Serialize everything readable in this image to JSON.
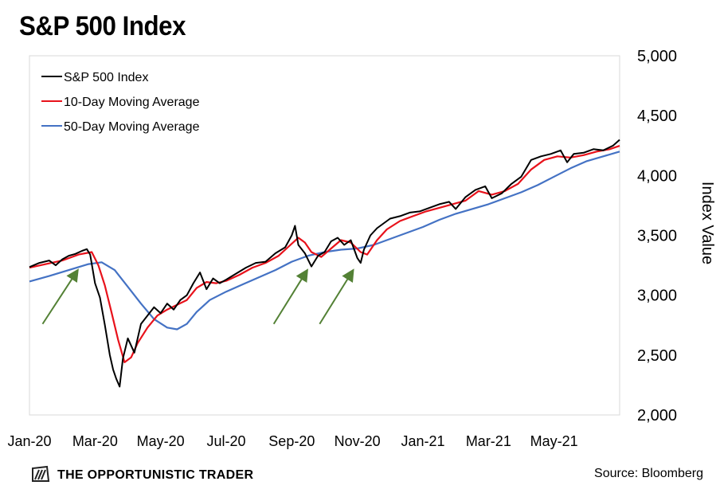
{
  "title": "S&P 500 Index",
  "source": "Source: Bloomberg",
  "brand": "THE OPPORTUNISTIC TRADER",
  "icon": "trader-logo-icon",
  "colors": {
    "index": "#000000",
    "ma10": "#e8121b",
    "ma50": "#4472c4",
    "arrow": "#538135",
    "frame": "#d9d9d9"
  },
  "chart_data": {
    "type": "line",
    "title": "S&P 500 Index",
    "xlabel": "",
    "ylabel": "Index Value",
    "x_tick_labels": [
      "Jan-20",
      "Mar-20",
      "May-20",
      "Jul-20",
      "Sep-20",
      "Nov-20",
      "Jan-21",
      "Mar-21",
      "May-21"
    ],
    "y_tick_labels": [
      "2,000",
      "2,500",
      "3,000",
      "3,500",
      "4,000",
      "4,500",
      "5,000"
    ],
    "y_ticks": [
      2000,
      2500,
      3000,
      3500,
      4000,
      4500,
      5000
    ],
    "ylim": [
      2000,
      5000
    ],
    "xlim": [
      0,
      18
    ],
    "x_unit": "months since Jan-20",
    "legend_position": "top-left",
    "grid": false,
    "series": [
      {
        "name": "S&P 500 Index",
        "color": "#000000",
        "points": [
          [
            0,
            3235
          ],
          [
            0.3,
            3270
          ],
          [
            0.6,
            3290
          ],
          [
            0.8,
            3250
          ],
          [
            1.0,
            3300
          ],
          [
            1.2,
            3330
          ],
          [
            1.4,
            3345
          ],
          [
            1.6,
            3370
          ],
          [
            1.75,
            3385
          ],
          [
            1.85,
            3340
          ],
          [
            2.0,
            3100
          ],
          [
            2.15,
            2980
          ],
          [
            2.3,
            2750
          ],
          [
            2.45,
            2500
          ],
          [
            2.55,
            2380
          ],
          [
            2.65,
            2300
          ],
          [
            2.75,
            2237
          ],
          [
            2.85,
            2470
          ],
          [
            3.0,
            2640
          ],
          [
            3.2,
            2520
          ],
          [
            3.4,
            2760
          ],
          [
            3.6,
            2830
          ],
          [
            3.8,
            2900
          ],
          [
            4.0,
            2850
          ],
          [
            4.2,
            2930
          ],
          [
            4.4,
            2880
          ],
          [
            4.6,
            2960
          ],
          [
            4.8,
            3000
          ],
          [
            5.0,
            3100
          ],
          [
            5.2,
            3190
          ],
          [
            5.4,
            3050
          ],
          [
            5.6,
            3140
          ],
          [
            5.8,
            3100
          ],
          [
            6.0,
            3130
          ],
          [
            6.3,
            3180
          ],
          [
            6.6,
            3230
          ],
          [
            6.9,
            3270
          ],
          [
            7.2,
            3280
          ],
          [
            7.5,
            3350
          ],
          [
            7.8,
            3400
          ],
          [
            8.0,
            3500
          ],
          [
            8.1,
            3580
          ],
          [
            8.2,
            3420
          ],
          [
            8.4,
            3350
          ],
          [
            8.6,
            3240
          ],
          [
            8.8,
            3330
          ],
          [
            9.0,
            3360
          ],
          [
            9.2,
            3450
          ],
          [
            9.4,
            3480
          ],
          [
            9.6,
            3420
          ],
          [
            9.8,
            3460
          ],
          [
            10.0,
            3310
          ],
          [
            10.1,
            3270
          ],
          [
            10.2,
            3380
          ],
          [
            10.4,
            3500
          ],
          [
            10.6,
            3560
          ],
          [
            10.8,
            3600
          ],
          [
            11.0,
            3640
          ],
          [
            11.3,
            3660
          ],
          [
            11.6,
            3690
          ],
          [
            11.9,
            3700
          ],
          [
            12.2,
            3730
          ],
          [
            12.5,
            3760
          ],
          [
            12.8,
            3780
          ],
          [
            13.0,
            3720
          ],
          [
            13.3,
            3820
          ],
          [
            13.6,
            3880
          ],
          [
            13.9,
            3910
          ],
          [
            14.1,
            3810
          ],
          [
            14.4,
            3850
          ],
          [
            14.7,
            3930
          ],
          [
            15.0,
            3990
          ],
          [
            15.3,
            4130
          ],
          [
            15.6,
            4160
          ],
          [
            15.9,
            4180
          ],
          [
            16.2,
            4210
          ],
          [
            16.4,
            4110
          ],
          [
            16.6,
            4180
          ],
          [
            16.9,
            4190
          ],
          [
            17.2,
            4220
          ],
          [
            17.5,
            4210
          ],
          [
            17.8,
            4250
          ],
          [
            18.0,
            4298
          ]
        ]
      },
      {
        "name": "10-Day Moving Average",
        "color": "#e8121b",
        "points": [
          [
            0,
            3230
          ],
          [
            0.5,
            3260
          ],
          [
            1.0,
            3290
          ],
          [
            1.5,
            3340
          ],
          [
            1.9,
            3360
          ],
          [
            2.1,
            3250
          ],
          [
            2.3,
            3080
          ],
          [
            2.5,
            2860
          ],
          [
            2.7,
            2630
          ],
          [
            2.9,
            2440
          ],
          [
            3.1,
            2480
          ],
          [
            3.3,
            2600
          ],
          [
            3.6,
            2730
          ],
          [
            3.9,
            2830
          ],
          [
            4.2,
            2880
          ],
          [
            4.5,
            2920
          ],
          [
            4.8,
            2960
          ],
          [
            5.1,
            3060
          ],
          [
            5.4,
            3110
          ],
          [
            5.7,
            3100
          ],
          [
            6.0,
            3120
          ],
          [
            6.4,
            3170
          ],
          [
            6.8,
            3230
          ],
          [
            7.2,
            3270
          ],
          [
            7.6,
            3330
          ],
          [
            8.0,
            3430
          ],
          [
            8.2,
            3480
          ],
          [
            8.4,
            3440
          ],
          [
            8.6,
            3360
          ],
          [
            8.9,
            3320
          ],
          [
            9.2,
            3390
          ],
          [
            9.5,
            3460
          ],
          [
            9.8,
            3440
          ],
          [
            10.1,
            3360
          ],
          [
            10.3,
            3340
          ],
          [
            10.6,
            3460
          ],
          [
            10.9,
            3550
          ],
          [
            11.3,
            3620
          ],
          [
            11.7,
            3660
          ],
          [
            12.1,
            3700
          ],
          [
            12.5,
            3730
          ],
          [
            12.9,
            3760
          ],
          [
            13.3,
            3790
          ],
          [
            13.7,
            3870
          ],
          [
            14.1,
            3840
          ],
          [
            14.5,
            3870
          ],
          [
            14.9,
            3930
          ],
          [
            15.3,
            4050
          ],
          [
            15.7,
            4130
          ],
          [
            16.1,
            4160
          ],
          [
            16.5,
            4150
          ],
          [
            16.9,
            4170
          ],
          [
            17.3,
            4200
          ],
          [
            17.7,
            4220
          ],
          [
            18.0,
            4248
          ]
        ]
      },
      {
        "name": "50-Day Moving Average",
        "color": "#4472c4",
        "points": [
          [
            0,
            3115
          ],
          [
            0.6,
            3160
          ],
          [
            1.2,
            3210
          ],
          [
            1.8,
            3260
          ],
          [
            2.2,
            3275
          ],
          [
            2.6,
            3210
          ],
          [
            3.0,
            3070
          ],
          [
            3.4,
            2930
          ],
          [
            3.8,
            2800
          ],
          [
            4.2,
            2730
          ],
          [
            4.5,
            2715
          ],
          [
            4.8,
            2760
          ],
          [
            5.1,
            2860
          ],
          [
            5.5,
            2960
          ],
          [
            6.0,
            3030
          ],
          [
            6.5,
            3090
          ],
          [
            7.0,
            3150
          ],
          [
            7.5,
            3210
          ],
          [
            8.0,
            3280
          ],
          [
            8.5,
            3330
          ],
          [
            9.0,
            3360
          ],
          [
            9.5,
            3380
          ],
          [
            10.0,
            3390
          ],
          [
            10.5,
            3420
          ],
          [
            11.0,
            3470
          ],
          [
            11.5,
            3520
          ],
          [
            12.0,
            3570
          ],
          [
            12.5,
            3630
          ],
          [
            13.0,
            3680
          ],
          [
            13.5,
            3720
          ],
          [
            14.0,
            3760
          ],
          [
            14.5,
            3810
          ],
          [
            15.0,
            3860
          ],
          [
            15.5,
            3920
          ],
          [
            16.0,
            3990
          ],
          [
            16.5,
            4060
          ],
          [
            17.0,
            4120
          ],
          [
            17.5,
            4160
          ],
          [
            18.0,
            4200
          ]
        ]
      }
    ],
    "annotations": [
      {
        "type": "arrow",
        "from": [
          0.4,
          2760
        ],
        "to": [
          1.45,
          3200
        ]
      },
      {
        "type": "arrow",
        "from": [
          7.45,
          2760
        ],
        "to": [
          8.45,
          3200
        ]
      },
      {
        "type": "arrow",
        "from": [
          8.85,
          2760
        ],
        "to": [
          9.85,
          3200
        ]
      }
    ]
  }
}
